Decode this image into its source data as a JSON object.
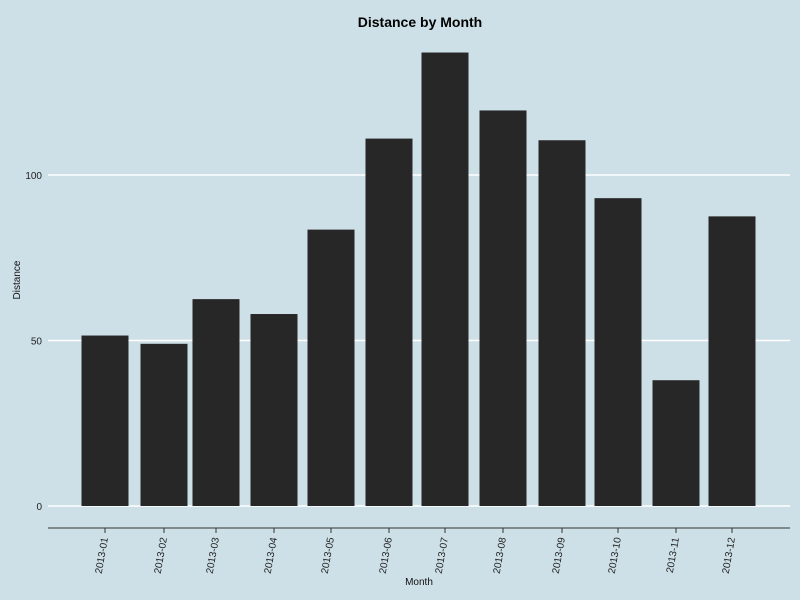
{
  "chart_data": {
    "type": "bar",
    "title": "Distance by Month",
    "xlabel": "Month",
    "ylabel": "Distance",
    "categories": [
      "2013-01",
      "2013-02",
      "2013-03",
      "2013-04",
      "2013-05",
      "2013-06",
      "2013-07",
      "2013-08",
      "2013-09",
      "2013-10",
      "2013-11",
      "2013-12"
    ],
    "values": [
      51.5,
      49,
      62.5,
      58,
      83.5,
      111,
      137,
      119.5,
      110.5,
      93,
      38,
      87.5
    ],
    "ylim": [
      0,
      140
    ],
    "yticks": [
      0,
      50,
      100
    ],
    "grid": "horizontal",
    "colors": {
      "background": "#cde0e7",
      "bar": "#272727",
      "grid": "#ffffff"
    }
  }
}
